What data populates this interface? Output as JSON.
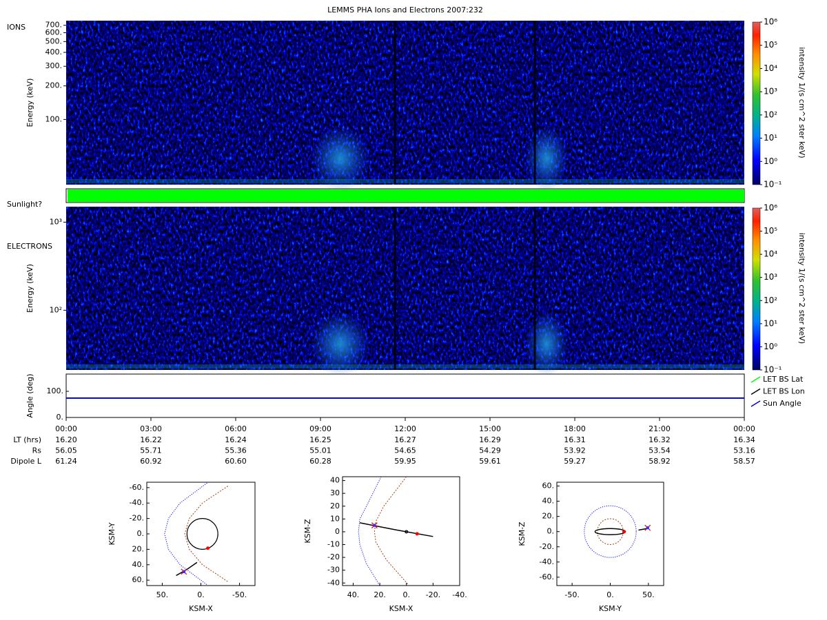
{
  "title": "LEMMS PHA Ions and Electrons  2007:232",
  "chart_data": [
    {
      "type": "heatmap",
      "label": "IONS",
      "ylabel": "Energy (keV)",
      "log_scale": true,
      "xlim": [
        0,
        24
      ],
      "ylim": [
        26,
        770
      ],
      "yticks": [
        {
          "value": 100,
          "label": "100."
        },
        {
          "value": 200,
          "label": "200."
        },
        {
          "value": 300,
          "label": "300."
        },
        {
          "value": 400,
          "label": "400."
        },
        {
          "value": 500,
          "label": "500."
        },
        {
          "value": 600,
          "label": "600."
        },
        {
          "value": 700,
          "label": "700."
        }
      ],
      "colorbar": {
        "label": "intensity 1/(s cm^2 ster keV)",
        "zlim": [
          0.1,
          1000000
        ],
        "zticks": [
          {
            "value": 0.1,
            "label": "10⁻¹"
          },
          {
            "value": 1,
            "label": "10⁰"
          },
          {
            "value": 10,
            "label": "10¹"
          },
          {
            "value": 100,
            "label": "10²"
          },
          {
            "value": 1000,
            "label": "10³"
          },
          {
            "value": 10000,
            "label": "10⁴"
          },
          {
            "value": 100000,
            "label": "10⁵"
          },
          {
            "value": 1000000,
            "label": "10⁶"
          }
        ]
      }
    },
    {
      "type": "status",
      "label": "Sunlight?",
      "xlim": [
        0,
        24
      ],
      "x": [
        0.05,
        24
      ],
      "color": "#00ff00"
    },
    {
      "type": "heatmap",
      "label": "ELECTRONS",
      "ylabel": "Energy (keV)",
      "log_scale": true,
      "xlim": [
        0,
        24
      ],
      "ylim": [
        21,
        1500
      ],
      "yticks": [
        {
          "value": 100,
          "label": "10²"
        },
        {
          "value": 1000,
          "label": "10³"
        }
      ],
      "colorbar": {
        "label": "intensity 1/(s cm^2 ster keV)",
        "zlim": [
          0.1,
          1000000
        ],
        "zticks": [
          {
            "value": 0.1,
            "label": "10⁻¹"
          },
          {
            "value": 1,
            "label": "10⁰"
          },
          {
            "value": 10,
            "label": "10¹"
          },
          {
            "value": 100,
            "label": "10²"
          },
          {
            "value": 1000,
            "label": "10³"
          },
          {
            "value": 10000,
            "label": "10⁴"
          },
          {
            "value": 100000,
            "label": "10⁵"
          },
          {
            "value": 1000000,
            "label": "10⁶"
          }
        ]
      }
    },
    {
      "type": "line",
      "ylabel": "Angle (deg)",
      "xlim": [
        0,
        24
      ],
      "ylim": [
        0,
        166
      ],
      "yticks": [
        {
          "value": 0,
          "label": "0."
        },
        {
          "value": 100,
          "label": "100."
        }
      ],
      "xticks": [
        {
          "value": 0,
          "label": "00:00"
        },
        {
          "value": 3,
          "label": "03:00"
        },
        {
          "value": 6,
          "label": "06:00"
        },
        {
          "value": 9,
          "label": "09:00"
        },
        {
          "value": 12,
          "label": "12:00"
        },
        {
          "value": 15,
          "label": "15:00"
        },
        {
          "value": 18,
          "label": "18:00"
        },
        {
          "value": 21,
          "label": "21:00"
        },
        {
          "value": 24,
          "label": "00:00"
        }
      ],
      "x": [
        0,
        3,
        6,
        9,
        12,
        15,
        18,
        21,
        24
      ],
      "series": [
        {
          "name": "LET BS Lat",
          "color": "#00ff00",
          "values": [
            null,
            null,
            null,
            null,
            null,
            null,
            null,
            null,
            null
          ]
        },
        {
          "name": "LET BS Lon",
          "color": "#000000",
          "values": [
            null,
            null,
            null,
            null,
            null,
            null,
            null,
            null,
            null
          ]
        },
        {
          "name": "Sun Angle",
          "color": "#0000cc",
          "values": [
            74,
            74,
            74,
            74,
            74,
            74,
            74,
            74,
            74
          ]
        }
      ]
    },
    {
      "type": "orbit",
      "xlabel": "KSM-X",
      "ylabel": "KSM-Y",
      "xlim": [
        70,
        -70
      ],
      "ylim": [
        67,
        -67
      ],
      "xticks": [
        {
          "value": 50,
          "label": "50."
        },
        {
          "value": 0,
          "label": "0."
        },
        {
          "value": -50,
          "label": "-50."
        }
      ],
      "yticks": [
        {
          "value": -60,
          "label": "-60."
        },
        {
          "value": -40,
          "label": "-40."
        },
        {
          "value": -20,
          "label": "-20."
        },
        {
          "value": 0,
          "label": "0."
        },
        {
          "value": 20,
          "label": "20."
        },
        {
          "value": 40,
          "label": "40."
        },
        {
          "value": 60,
          "label": "60."
        }
      ],
      "series": [
        {
          "style": "dotted",
          "color": "#0000ff",
          "x": [
            -8,
            27,
            42,
            47,
            42,
            27,
            -8
          ],
          "y": [
            -66,
            -40,
            -20,
            0,
            20,
            40,
            66
          ]
        },
        {
          "style": "dashed",
          "color": "#a04010",
          "x": [
            -35,
            -2,
            15,
            21,
            15,
            -2,
            -35
          ],
          "y": [
            -62,
            -40,
            -20,
            0,
            20,
            40,
            62
          ]
        },
        {
          "style": "circle",
          "color": "#000000",
          "cx": -2,
          "cy": 0,
          "r": 20
        },
        {
          "style": "solid",
          "color": "#000000",
          "x": [
            32,
            18,
            5
          ],
          "y": [
            54,
            46,
            37
          ]
        },
        {
          "style": "dot",
          "color": "#ff0000",
          "x": [
            -9
          ],
          "y": [
            18.5
          ]
        },
        {
          "style": "cross",
          "color": "#ff0000",
          "x": [
            22
          ],
          "y": [
            49
          ]
        }
      ]
    },
    {
      "type": "orbit",
      "xlabel": "KSM-X",
      "ylabel": "KSM-Z",
      "xlim": [
        48,
        -40
      ],
      "ylim": [
        -42,
        43
      ],
      "xticks": [
        {
          "value": 40,
          "label": "40."
        },
        {
          "value": 20,
          "label": "20."
        },
        {
          "value": 0,
          "label": "0."
        },
        {
          "value": -20,
          "label": "-20."
        },
        {
          "value": -40,
          "label": "-40."
        }
      ],
      "yticks": [
        40,
        30,
        20,
        10,
        0,
        -10,
        -20,
        -30,
        -40
      ],
      "series": [
        {
          "style": "dotted",
          "color": "#0000ff",
          "x": [
            19,
            30,
            35,
            36,
            35,
            30,
            20
          ],
          "y": [
            43,
            20,
            10,
            0,
            -10,
            -25,
            -42
          ]
        },
        {
          "style": "dashed",
          "color": "#a04010",
          "x": [
            0,
            17,
            23,
            24,
            23,
            15,
            -2
          ],
          "y": [
            43,
            20,
            8,
            0,
            -8,
            -22,
            -42
          ]
        },
        {
          "style": "circle",
          "color": "#000000",
          "cx": 0,
          "cy": 0,
          "r": 1
        },
        {
          "style": "solid",
          "color": "#000000",
          "x": [
            35,
            8,
            -20
          ],
          "y": [
            7,
            1.5,
            -3.7
          ]
        },
        {
          "style": "dot",
          "color": "#ff0000",
          "x": [
            -8
          ],
          "y": [
            -1.6
          ]
        },
        {
          "style": "cross",
          "color": "#ff0000",
          "x": [
            24
          ],
          "y": [
            5
          ]
        }
      ]
    },
    {
      "type": "orbit",
      "xlabel": "KSM-Y",
      "ylabel": "KSM-Z",
      "xlim": [
        -70,
        70
      ],
      "ylim": [
        -71,
        65
      ],
      "xticks": [
        {
          "value": -50,
          "label": "-50."
        },
        {
          "value": 0,
          "label": "0."
        },
        {
          "value": 50,
          "label": "50."
        }
      ],
      "yticks": [
        {
          "value": 60,
          "label": "60."
        },
        {
          "value": 40,
          "label": "40."
        },
        {
          "value": 20,
          "label": "20."
        },
        {
          "value": 0,
          "label": "0."
        },
        {
          "value": -20,
          "label": "-20."
        },
        {
          "value": -40,
          "label": "-40."
        },
        {
          "value": -60,
          "label": "-60."
        }
      ],
      "series": [
        {
          "style": "circle-dotted",
          "color": "#0000ff",
          "cx": 0,
          "cy": 0,
          "r": 34
        },
        {
          "style": "circle-dashed",
          "color": "#a04010",
          "cx": 0,
          "cy": 0,
          "r": 17
        },
        {
          "style": "ellipse",
          "color": "#000000",
          "cx": 0,
          "cy": 0,
          "rx": 20,
          "ry": 4
        },
        {
          "style": "solid",
          "color": "#000000",
          "x": [
            37,
            48
          ],
          "y": [
            2,
            4
          ]
        },
        {
          "style": "dot",
          "color": "#ff0000",
          "x": [
            18
          ],
          "y": [
            0
          ]
        },
        {
          "style": "cross",
          "color": "#ff0000",
          "x": [
            49
          ],
          "y": [
            5
          ]
        }
      ]
    }
  ],
  "ephemeris": {
    "rows": [
      {
        "label": "LT (hrs)",
        "values": [
          "16.20",
          "16.22",
          "16.24",
          "16.25",
          "16.27",
          "16.29",
          "16.31",
          "16.32",
          "16.34"
        ]
      },
      {
        "label": "Rs",
        "values": [
          "56.05",
          "55.71",
          "55.36",
          "55.01",
          "54.65",
          "54.29",
          "53.92",
          "53.54",
          "53.16"
        ]
      },
      {
        "label": "Dipole L",
        "values": [
          "61.24",
          "60.92",
          "60.60",
          "60.28",
          "59.95",
          "59.61",
          "59.27",
          "58.92",
          "58.57"
        ]
      }
    ]
  }
}
